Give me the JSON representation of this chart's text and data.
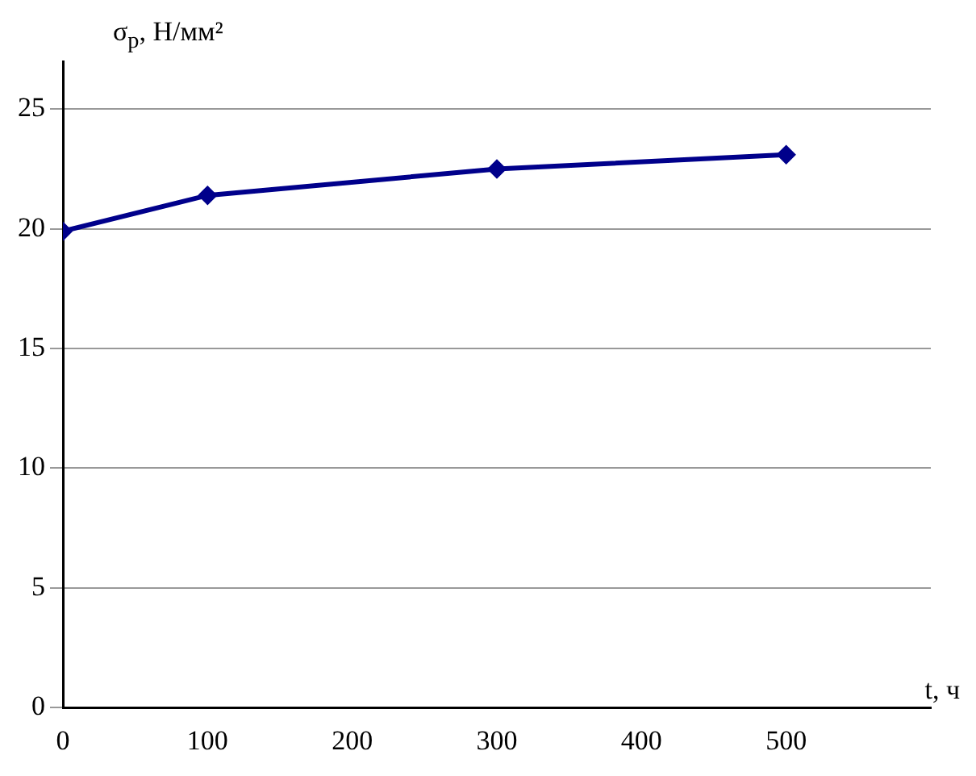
{
  "chart_data": {
    "type": "line",
    "xlabel": "t, ч",
    "ylabel": "σ$_{р}$, Н/мм²",
    "x": [
      0,
      100,
      300,
      500
    ],
    "series": [
      {
        "color": "#00008b",
        "values": [
          19.9,
          21.4,
          22.5,
          23.1
        ]
      }
    ],
    "xlim": [
      0,
      600
    ],
    "ylim": [
      0,
      27
    ],
    "xticks": [
      0,
      100,
      200,
      300,
      400,
      500
    ],
    "yticks": [
      0,
      5,
      10,
      15,
      20,
      25
    ],
    "grid": "y",
    "marker": "diamond",
    "line_style": "solid",
    "legend": false
  }
}
